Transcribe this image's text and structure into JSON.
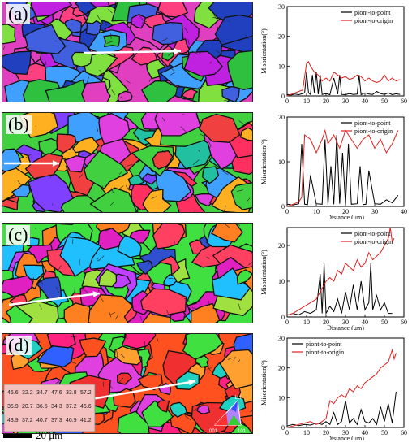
{
  "colors": {
    "point_to_point": "#000000",
    "point_to_origin": "#e02020"
  },
  "scale_bar": "20 μm",
  "inset_triangle": {
    "corner_001": "001",
    "corner_101": "101",
    "corner_111": "111"
  },
  "inset_values": [
    "46.6",
    "32.2",
    "34.7",
    "47.6",
    "33.8",
    "57.2",
    "35.9",
    "20.7",
    "36.5",
    "34.3",
    "37.2",
    "46.6",
    "43.9",
    "37.2",
    "40.7",
    "37.3",
    "46.9",
    "41.2"
  ],
  "chart_data": [
    {
      "type": "line",
      "panel": "(a)",
      "xlim": [
        0,
        60
      ],
      "ylim": [
        0,
        30
      ],
      "xticks": [
        0,
        10,
        20,
        30,
        40,
        50,
        60
      ],
      "yticks": [
        0,
        10,
        20,
        30
      ],
      "xlabel": "",
      "ylabel": "Misorientation(°)",
      "legend": "top-right",
      "series": [
        {
          "name": "piont-to-point",
          "x": [
            0,
            2,
            4,
            6,
            8,
            9,
            10,
            11,
            12,
            13,
            14,
            15,
            16,
            17,
            18,
            20,
            22,
            24,
            26,
            27,
            28,
            30,
            32,
            34,
            36,
            37,
            38,
            40,
            42,
            44,
            46,
            48,
            50,
            52,
            54,
            56,
            58
          ],
          "y": [
            0.5,
            0.3,
            0.6,
            0.4,
            0.8,
            1,
            8,
            1,
            0.5,
            7,
            1,
            8,
            0.6,
            7,
            0.5,
            0.8,
            0.4,
            6,
            0.6,
            7,
            0.5,
            0.4,
            0.8,
            0.5,
            0.6,
            7,
            0.4,
            1,
            0.6,
            0.5,
            1.5,
            0.8,
            0.5,
            1,
            0.4,
            0.7,
            0.5
          ]
        },
        {
          "name": "piont-to-origin",
          "x": [
            0,
            2,
            4,
            6,
            8,
            10,
            11,
            12,
            14,
            16,
            18,
            20,
            22,
            24,
            26,
            28,
            30,
            32,
            34,
            36,
            38,
            40,
            42,
            44,
            46,
            48,
            50,
            52,
            54,
            56,
            58
          ],
          "y": [
            0,
            0.5,
            1,
            1.5,
            2,
            11,
            11.5,
            10,
            8,
            7,
            5,
            6,
            5,
            8,
            7,
            6,
            6.5,
            5.5,
            6,
            7,
            6.5,
            5,
            6,
            5,
            4.5,
            5,
            7,
            5,
            6,
            5,
            5.5
          ]
        }
      ]
    },
    {
      "type": "line",
      "panel": "(b)",
      "xlim": [
        0,
        40
      ],
      "ylim": [
        0,
        20
      ],
      "xticks": [
        0,
        10,
        20,
        30,
        40
      ],
      "yticks": [
        0,
        10,
        20
      ],
      "xlabel": "Distance (μm)",
      "ylabel": "Misorientation(°)",
      "legend": "top-right",
      "series": [
        {
          "name": "piont-to-point",
          "x": [
            0,
            2,
            4,
            5,
            6,
            7,
            8,
            10,
            12,
            13,
            14,
            15,
            16,
            17,
            18,
            19,
            20,
            21,
            22,
            24,
            25,
            26,
            27,
            28,
            30,
            32,
            34,
            36,
            38
          ],
          "y": [
            0.5,
            0.3,
            0.6,
            14,
            0.5,
            0.4,
            7,
            0.6,
            0.5,
            15,
            0.4,
            9,
            0.5,
            16,
            0.6,
            12,
            0.4,
            14,
            0.5,
            0.6,
            9,
            0.4,
            0.5,
            8,
            0.6,
            0.5,
            1.5,
            0.8,
            2.5
          ]
        },
        {
          "name": "piont-to-origin",
          "x": [
            0,
            2,
            4,
            5,
            6,
            8,
            10,
            12,
            13,
            14,
            16,
            18,
            20,
            22,
            24,
            26,
            28,
            30,
            32,
            34,
            36,
            38
          ],
          "y": [
            0,
            0.5,
            1,
            2,
            16,
            15,
            12,
            15,
            17,
            14,
            16,
            13,
            17,
            15,
            13,
            15,
            16,
            13,
            15,
            12,
            14,
            17
          ]
        }
      ]
    },
    {
      "type": "line",
      "panel": "(c)",
      "xlim": [
        0,
        60
      ],
      "ylim": [
        0,
        25
      ],
      "xticks": [
        0,
        10,
        20,
        30,
        40,
        50,
        60
      ],
      "yticks": [
        0,
        10,
        20
      ],
      "xlabel": "Distance (μm)",
      "ylabel": "Misorientation(°)",
      "legend": "top-right",
      "series": [
        {
          "name": "piont-to-point",
          "x": [
            0,
            3,
            6,
            9,
            12,
            15,
            17,
            18,
            19,
            20,
            22,
            24,
            26,
            28,
            30,
            32,
            34,
            36,
            38,
            40,
            42,
            43,
            44,
            46,
            48,
            50,
            52,
            54
          ],
          "y": [
            0.5,
            1,
            0.6,
            1.5,
            1,
            2,
            12,
            1,
            15,
            1,
            3,
            1.5,
            5,
            1,
            7,
            2,
            9,
            2,
            10,
            2,
            4,
            15,
            2,
            6,
            2,
            4,
            1,
            1
          ]
        },
        {
          "name": "piont-to-origin",
          "x": [
            0,
            3,
            6,
            9,
            12,
            15,
            18,
            20,
            22,
            24,
            26,
            28,
            30,
            32,
            34,
            36,
            38,
            40,
            42,
            44,
            46,
            48,
            50,
            52,
            53,
            54,
            55
          ],
          "y": [
            0.5,
            1,
            2,
            3,
            4,
            5,
            8,
            10,
            11,
            10,
            13,
            12,
            15,
            14,
            13,
            16,
            14,
            15,
            18,
            16,
            17,
            18,
            20,
            22,
            25,
            21,
            22
          ]
        }
      ]
    },
    {
      "type": "line",
      "panel": "(d)",
      "xlim": [
        0,
        60
      ],
      "ylim": [
        0,
        30
      ],
      "xticks": [
        0,
        10,
        20,
        30,
        40,
        50,
        60
      ],
      "yticks": [
        0,
        10,
        20,
        30
      ],
      "xlabel": "Distance (μm)",
      "ylabel": "Misorientation(°)",
      "legend": "top-left",
      "series": [
        {
          "name": "piont-to-point",
          "x": [
            0,
            3,
            6,
            9,
            12,
            15,
            18,
            20,
            22,
            24,
            26,
            28,
            30,
            32,
            34,
            36,
            38,
            40,
            42,
            44,
            46,
            48,
            50,
            52,
            54,
            56
          ],
          "y": [
            0.5,
            1,
            0.6,
            1,
            0.8,
            1.5,
            1,
            2,
            1,
            5,
            1,
            2,
            9,
            1.5,
            3,
            1,
            6,
            2,
            1.5,
            3,
            1,
            7,
            2,
            8,
            1.5,
            12
          ]
        },
        {
          "name": "piont-to-origin",
          "x": [
            0,
            3,
            6,
            9,
            12,
            15,
            18,
            20,
            22,
            24,
            26,
            28,
            30,
            32,
            34,
            36,
            38,
            40,
            42,
            44,
            46,
            48,
            50,
            52,
            54,
            55,
            56
          ],
          "y": [
            0,
            0.5,
            1,
            1.5,
            2,
            1,
            2,
            3,
            9,
            8,
            10,
            11,
            10,
            13,
            12,
            14,
            13,
            15,
            16,
            17,
            18,
            20,
            21,
            22,
            26,
            23,
            25
          ]
        }
      ]
    }
  ]
}
